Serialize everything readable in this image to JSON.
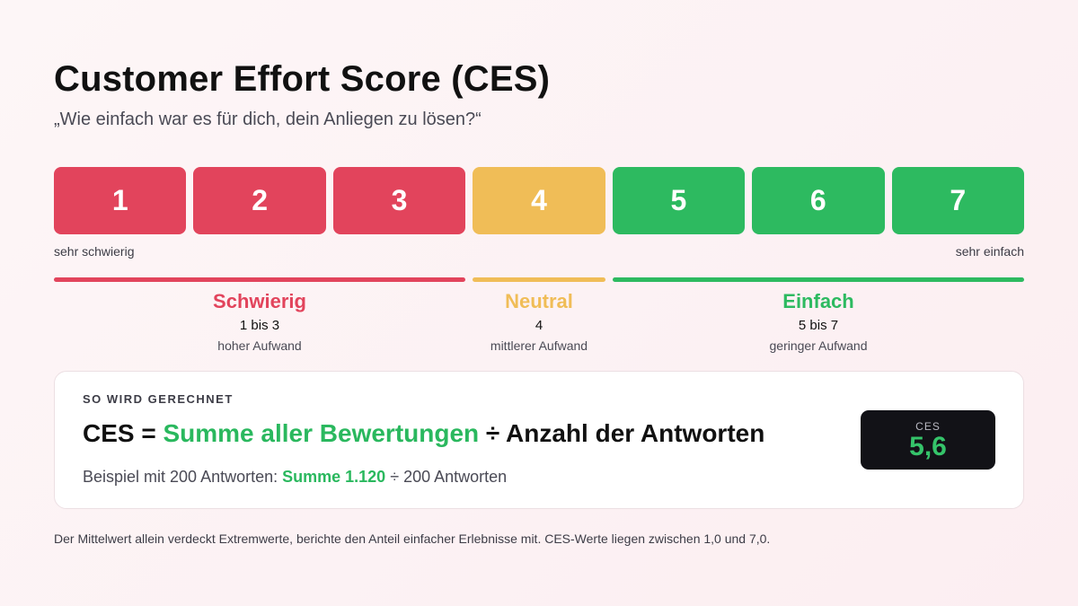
{
  "title": "Customer Effort Score (CES)",
  "subtitle": "„Wie einfach war es für dich, dein Anliegen zu lösen?“",
  "colors": {
    "red": "#e2445c",
    "yellow": "#f0bd57",
    "green": "#2dba60",
    "dark": "#121217"
  },
  "scale": [
    {
      "value": "1",
      "color": "#e2445c"
    },
    {
      "value": "2",
      "color": "#e2445c"
    },
    {
      "value": "3",
      "color": "#e2445c"
    },
    {
      "value": "4",
      "color": "#f0bd57"
    },
    {
      "value": "5",
      "color": "#2dba60"
    },
    {
      "value": "6",
      "color": "#2dba60"
    },
    {
      "value": "7",
      "color": "#2dba60"
    }
  ],
  "scale_labels": {
    "low": "sehr schwierig",
    "high": "sehr einfach"
  },
  "groups": [
    {
      "name": "Schwierig",
      "range": "1 bis 3",
      "desc": "hoher Aufwand",
      "color": "#e2445c"
    },
    {
      "name": "Neutral",
      "range": "4",
      "desc": "mittlerer Aufwand",
      "color": "#f0bd57"
    },
    {
      "name": "Einfach",
      "range": "5 bis 7",
      "desc": "geringer Aufwand",
      "color": "#2dba60"
    }
  ],
  "calc": {
    "label": "SO WIRD GERECHNET",
    "formula_prefix": "CES = ",
    "formula_sum": "Summe aller Bewertungen",
    "formula_suffix": " ÷ Anzahl der Antworten",
    "example_prefix": "Beispiel mit 200 Antworten: ",
    "example_sum": "Summe 1.120",
    "example_suffix": " ÷ 200 Antworten",
    "result_label": "CES",
    "result_value": "5,6"
  },
  "footnote": "Der Mittelwert allein verdeckt Extremwerte, berichte den Anteil einfacher Erlebnisse mit. CES-Werte liegen zwischen 1,0 und 7,0."
}
